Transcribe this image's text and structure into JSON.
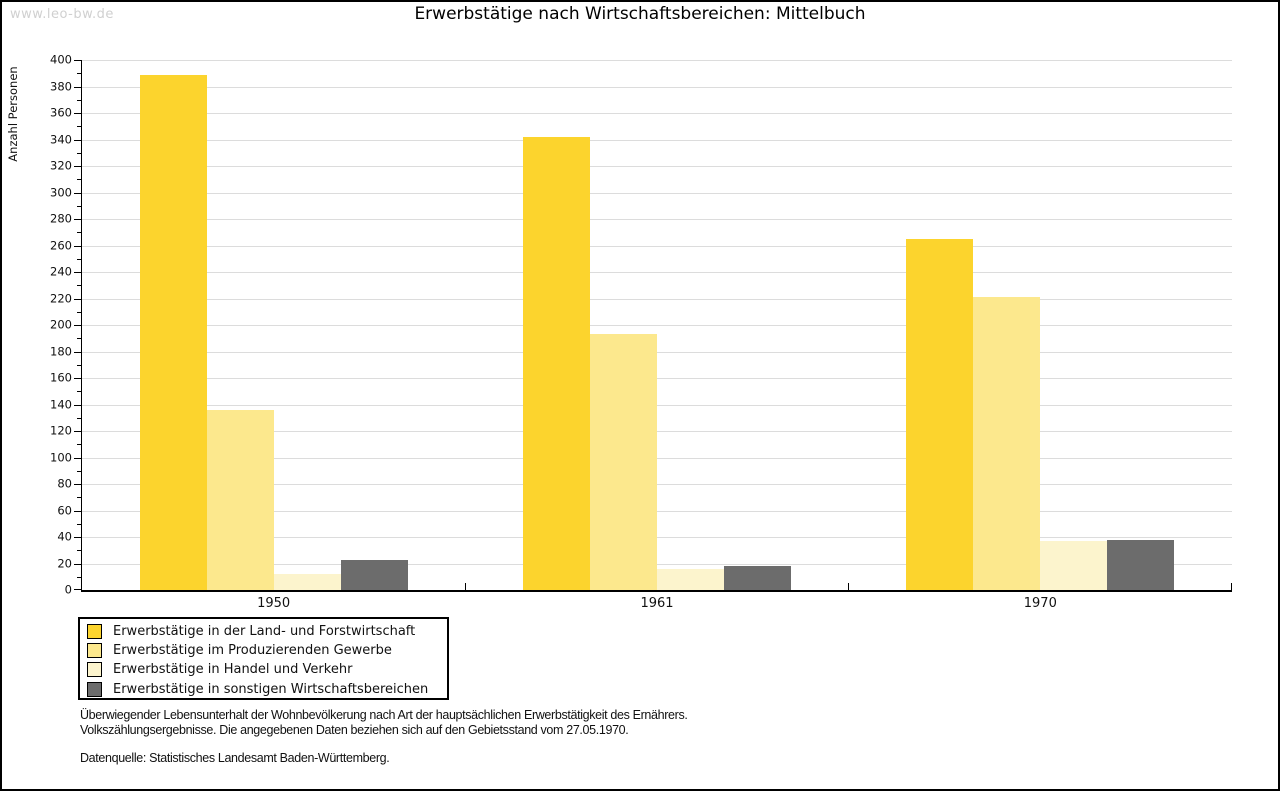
{
  "watermark": "www.leo-bw.de",
  "title": "Erwerbstätige nach Wirtschaftsbereichen: Mittelbuch",
  "chart_data": {
    "type": "bar",
    "title": "Erwerbstätige nach Wirtschaftsbereichen: Mittelbuch",
    "xlabel": "",
    "ylabel": "Anzahl Personen",
    "ylim": [
      0,
      400
    ],
    "ytick_step": 20,
    "yticks": [
      0,
      20,
      40,
      60,
      80,
      100,
      120,
      140,
      160,
      180,
      200,
      220,
      240,
      260,
      280,
      300,
      320,
      340,
      360,
      380,
      400
    ],
    "grid": true,
    "legend_position": "bottom-left",
    "categories": [
      "1950",
      "1961",
      "1970"
    ],
    "series": [
      {
        "name": "Erwerbstätige in der Land- und Forstwirtschaft",
        "color": "#fcd42d",
        "values": [
          389,
          342,
          265
        ]
      },
      {
        "name": "Erwerbstätige im Produzierenden Gewerbe",
        "color": "#fce88d",
        "values": [
          136,
          193,
          221
        ]
      },
      {
        "name": "Erwerbstätige in Handel und Verkehr",
        "color": "#fcf4cd",
        "values": [
          12,
          16,
          37
        ]
      },
      {
        "name": "Erwerbstätige in sonstigen Wirtschaftsbereichen",
        "color": "#6c6c6c",
        "values": [
          23,
          18,
          38
        ]
      }
    ]
  },
  "footnote": {
    "line1": "Überwiegender Lebensunterhalt der Wohnbevölkerung nach Art der hauptsächlichen Erwerbstätigkeit des Ernährers.",
    "line2": "Volkszählungsergebnisse. Die angegebenen Daten beziehen sich auf den Gebietsstand vom 27.05.1970.",
    "source": "Datenquelle: Statistisches Landesamt Baden-Württemberg."
  },
  "colors": {
    "axis": "#000000",
    "gridline": "#dcdcdc",
    "watermark": "#d0d0d0",
    "background": "#ffffff"
  }
}
